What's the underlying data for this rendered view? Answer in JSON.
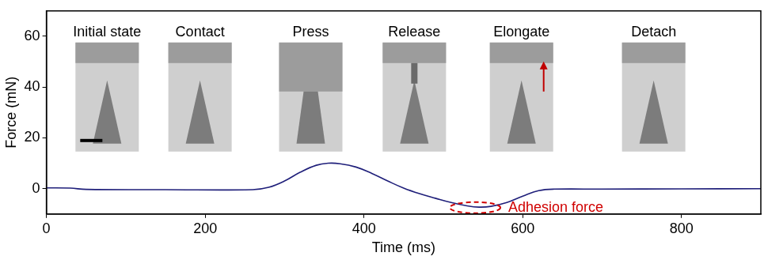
{
  "chart_data": {
    "type": "line",
    "x_label": "Time (ms)",
    "y_label": "Force (mN)",
    "x": [
      0,
      30,
      50,
      150,
      260,
      280,
      300,
      320,
      340,
      355,
      370,
      390,
      410,
      430,
      450,
      470,
      490,
      510,
      530,
      545,
      560,
      580,
      600,
      620,
      640,
      700,
      800,
      900
    ],
    "values": [
      0.3,
      0.2,
      -0.3,
      -0.4,
      -0.4,
      0.5,
      3,
      6.5,
      9.2,
      10,
      9.8,
      8.5,
      6,
      3,
      0.2,
      -2,
      -3.8,
      -5.5,
      -6.8,
      -7.3,
      -7,
      -5.5,
      -3,
      -0.8,
      -0.2,
      -0.2,
      -0.1,
      0
    ],
    "color": "#1f1f7a",
    "xlim": [
      0,
      900
    ],
    "xticks": [
      0,
      200,
      400,
      600,
      800
    ],
    "ylim": [
      -10,
      70
    ],
    "yticks": [
      0,
      20,
      40,
      60
    ],
    "grid": false,
    "stages": [
      "Initial state",
      "Contact",
      "Press",
      "Release",
      "Elongate",
      "Detach"
    ],
    "annotation": {
      "text": "Adhesion force",
      "x": 540,
      "y": -7.5
    }
  }
}
